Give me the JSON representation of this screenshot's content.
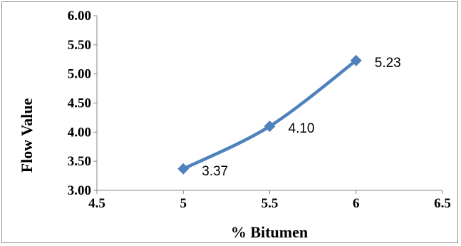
{
  "chart_data": {
    "type": "line",
    "title": "",
    "xlabel": "% Bitumen",
    "ylabel": "Flow Value",
    "xlim": [
      4.5,
      6.5
    ],
    "ylim": [
      3.0,
      6.0
    ],
    "x_ticks": [
      "4.5",
      "5",
      "5.5",
      "6",
      "6.5"
    ],
    "y_ticks": [
      "3.00",
      "3.50",
      "4.00",
      "4.50",
      "5.00",
      "5.50",
      "6.00"
    ],
    "grid": false,
    "legend": "none",
    "line_style": "smoothed",
    "marker": "diamond",
    "series": [
      {
        "x": [
          5,
          5.5,
          6
        ],
        "y": [
          3.37,
          4.1,
          5.23
        ],
        "data_labels": [
          "3.37",
          "4.10",
          "5.23"
        ],
        "color": "#4f81bd"
      }
    ]
  }
}
